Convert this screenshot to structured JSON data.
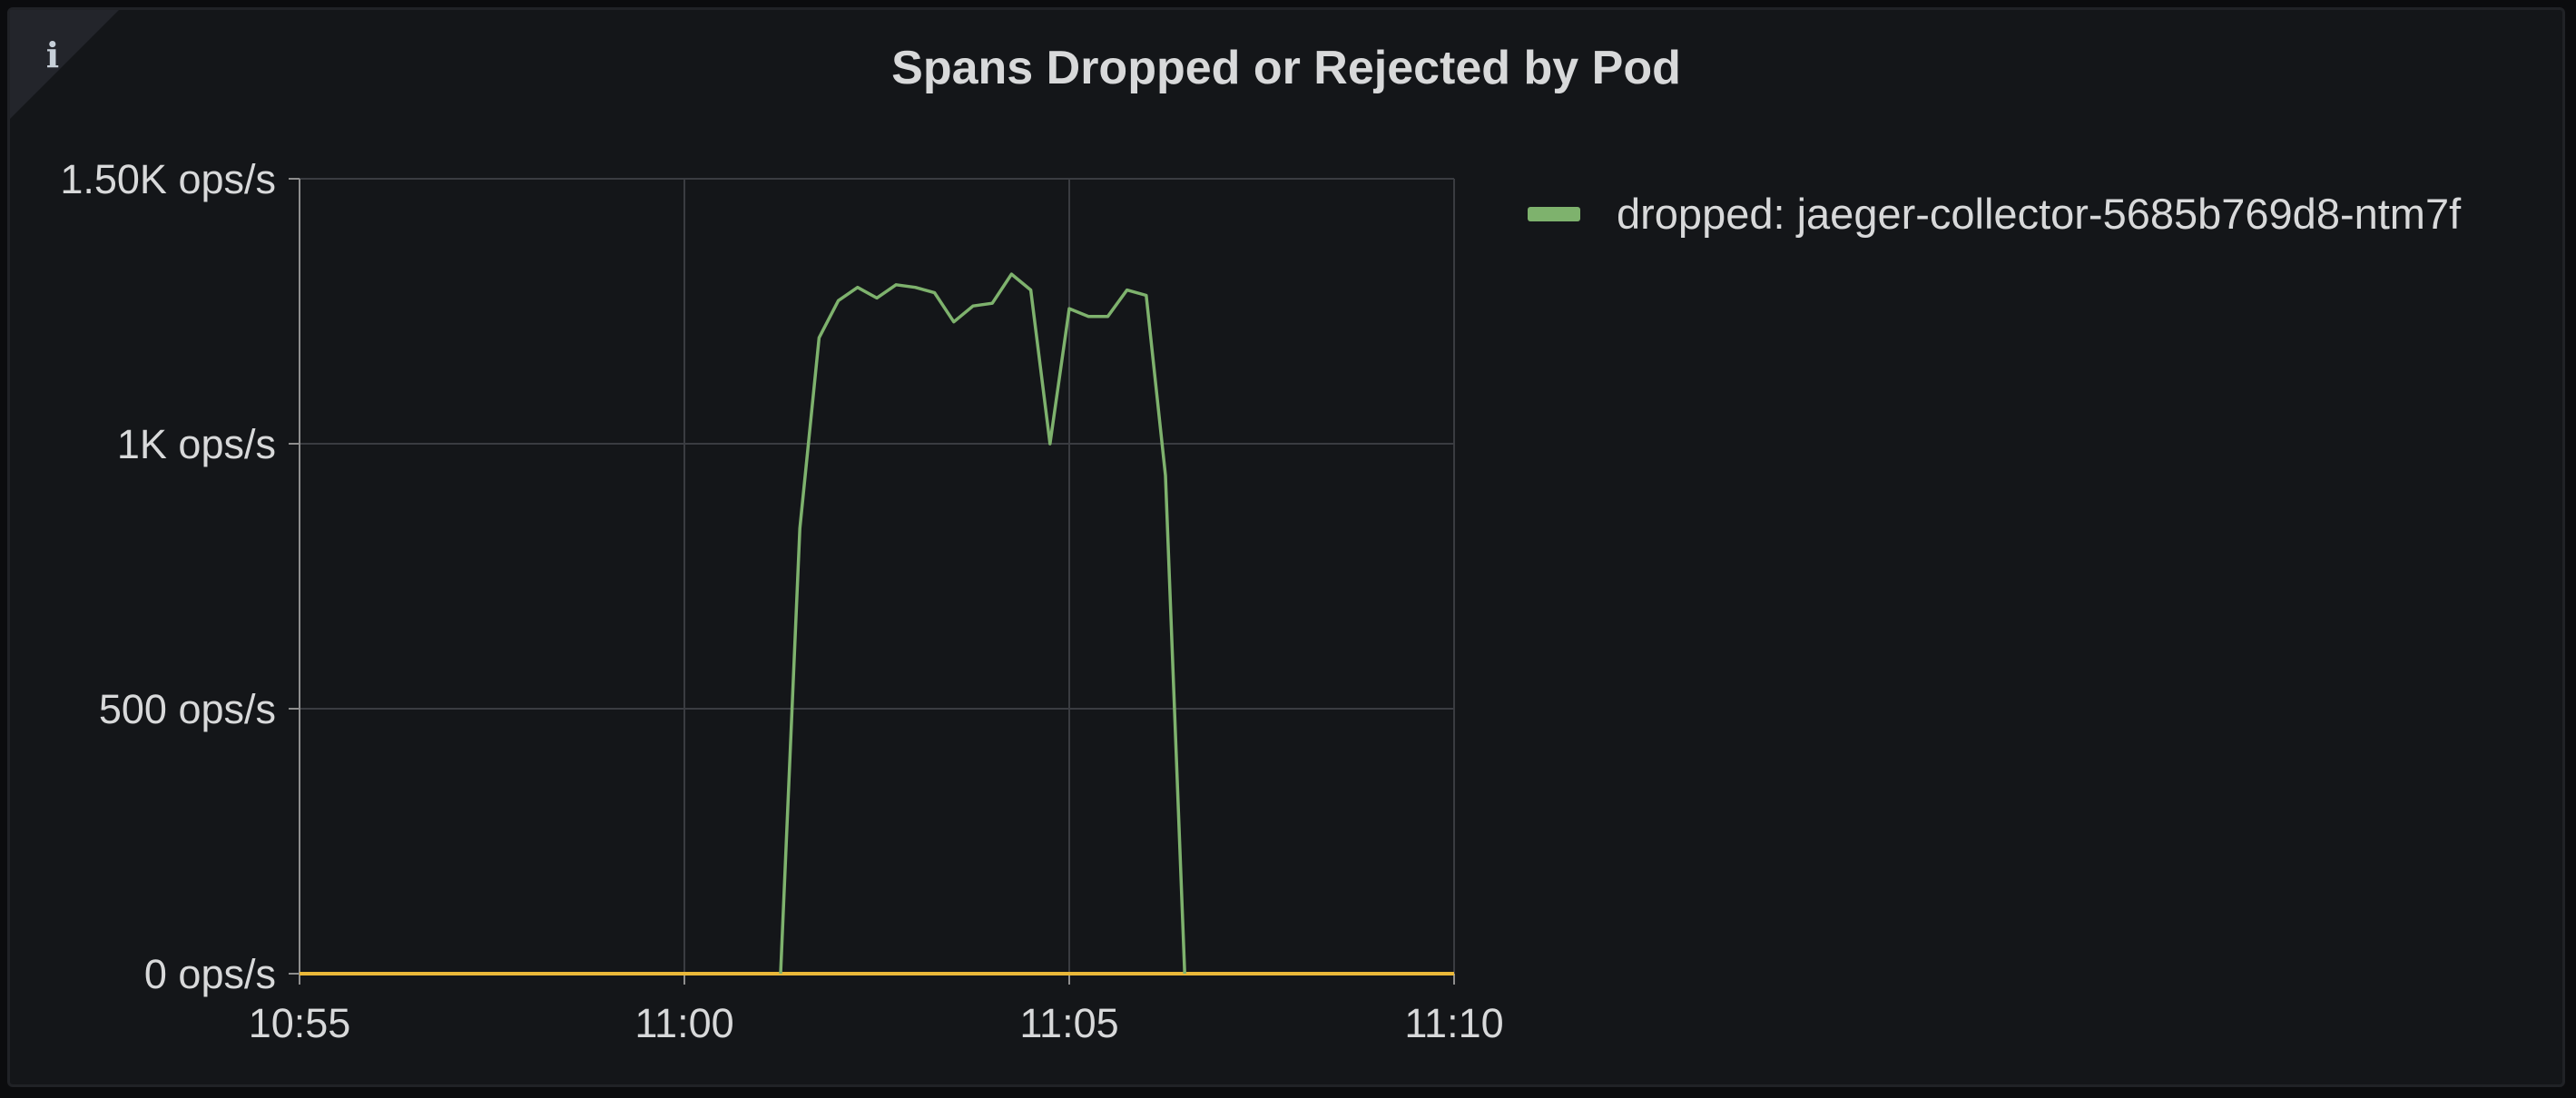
{
  "panel": {
    "title": "Spans Dropped or Rejected by Pod",
    "info_icon": "info-icon"
  },
  "legend": {
    "placement": "right",
    "items": [
      {
        "label": "dropped: jaeger-collector-5685b769d8-ntm7f",
        "color": "#7eb26d"
      }
    ]
  },
  "chart_data": {
    "type": "line",
    "title": "Spans Dropped or Rejected by Pod",
    "xlabel": "",
    "ylabel": "",
    "grid": true,
    "xlim": [
      "10:55",
      "11:10"
    ],
    "ylim": [
      0,
      1500
    ],
    "x_ticks": [
      "10:55",
      "11:00",
      "11:05",
      "11:10"
    ],
    "y_ticks": [
      {
        "value": 0,
        "label": "0 ops/s"
      },
      {
        "value": 500,
        "label": "500 ops/s"
      },
      {
        "value": 1000,
        "label": "1K ops/s"
      },
      {
        "value": 1500,
        "label": "1.50K ops/s"
      }
    ],
    "series": [
      {
        "name": "dropped: jaeger-collector-5685b769d8-ntm7f",
        "color": "#7eb26d",
        "points": [
          [
            "11:01:15",
            0
          ],
          [
            "11:01:30",
            840
          ],
          [
            "11:01:45",
            1200
          ],
          [
            "11:02:00",
            1270
          ],
          [
            "11:02:15",
            1295
          ],
          [
            "11:02:30",
            1275
          ],
          [
            "11:02:45",
            1300
          ],
          [
            "11:03:00",
            1295
          ],
          [
            "11:03:15",
            1285
          ],
          [
            "11:03:30",
            1230
          ],
          [
            "11:03:45",
            1260
          ],
          [
            "11:04:00",
            1265
          ],
          [
            "11:04:15",
            1320
          ],
          [
            "11:04:30",
            1290
          ],
          [
            "11:04:45",
            1000
          ],
          [
            "11:05:00",
            1255
          ],
          [
            "11:05:15",
            1240
          ],
          [
            "11:05:30",
            1240
          ],
          [
            "11:05:45",
            1290
          ],
          [
            "11:06:00",
            1280
          ],
          [
            "11:06:15",
            940
          ],
          [
            "11:06:30",
            0
          ]
        ]
      },
      {
        "name": "",
        "color": "#eab839",
        "points": [
          [
            "10:55:00",
            0
          ],
          [
            "11:10:00",
            0
          ]
        ]
      }
    ]
  }
}
